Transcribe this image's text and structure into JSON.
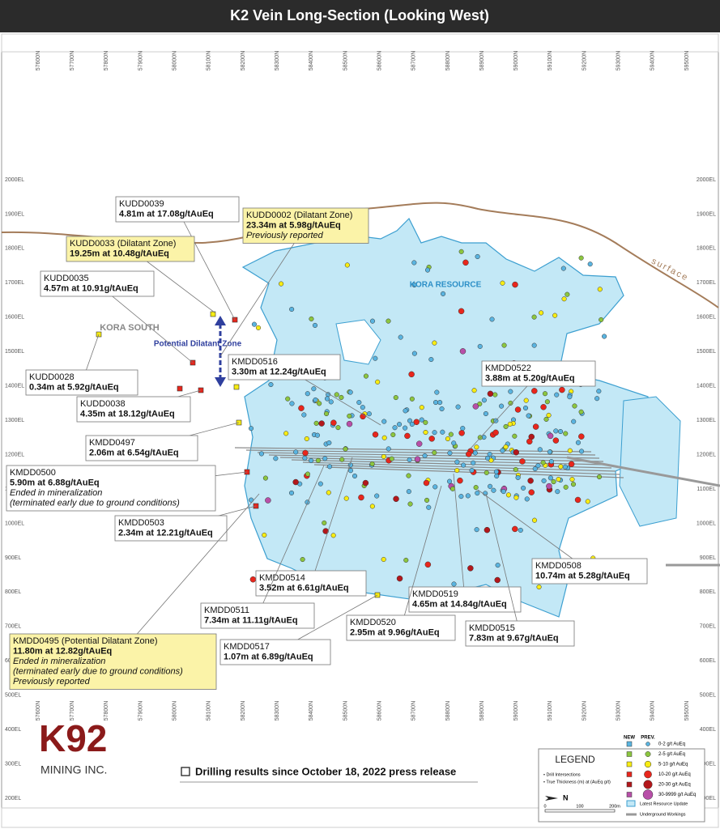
{
  "title": "K2 Vein Long-Section (Looking West)",
  "northings": [
    "57600N",
    "57700N",
    "57800N",
    "57900N",
    "58000N",
    "58100N",
    "58200N",
    "58300N",
    "58400N",
    "58500N",
    "58600N",
    "58700N",
    "58800N",
    "58900N",
    "59000N",
    "59100N",
    "59200N",
    "59300N",
    "59400N",
    "59500N"
  ],
  "elevations": [
    "2000EL",
    "1900EL",
    "1800EL",
    "1700EL",
    "1600EL",
    "1500EL",
    "1400EL",
    "1300EL",
    "1200EL",
    "1100EL",
    "1000EL",
    "900EL",
    "800EL",
    "700EL",
    "600EL",
    "500EL",
    "400EL",
    "300EL",
    "200EL"
  ],
  "map_labels": {
    "kora_south": "KORA SOUTH",
    "dilatant_zone": "Potential Dilatant Zone",
    "kora_resource": "KORA RESOURCE",
    "surface": "surface"
  },
  "callouts": [
    {
      "id": "KUDD0039",
      "result": "4.81m at 17.08g/tAuEq",
      "notes": [],
      "fill": "#ffffff"
    },
    {
      "id": "KUDD0002 (Dilatant Zone)",
      "result": "23.34m at 5.98g/tAuEq",
      "notes": [
        "Previously reported"
      ],
      "fill": "#fbf3a8"
    },
    {
      "id": "KUDD0033 (Dilatant Zone)",
      "result": "19.25m at 10.48g/tAuEq",
      "notes": [],
      "fill": "#fbf3a8"
    },
    {
      "id": "KUDD0035",
      "result": "4.57m at 10.91g/tAuEq",
      "notes": [],
      "fill": "#ffffff"
    },
    {
      "id": "KUDD0028",
      "result": "0.34m at 5.92g/tAuEq",
      "notes": [],
      "fill": "#ffffff"
    },
    {
      "id": "KUDD0038",
      "result": "4.35m at 18.12g/tAuEq",
      "notes": [],
      "fill": "#ffffff"
    },
    {
      "id": "KMDD0516",
      "result": "3.30m at 12.24g/tAuEq",
      "notes": [],
      "fill": "#ffffff"
    },
    {
      "id": "KMDD0522",
      "result": "3.88m at 5.20g/tAuEq",
      "notes": [],
      "fill": "#ffffff"
    },
    {
      "id": "KMDD0497",
      "result": "2.06m at 6.54g/tAuEq",
      "notes": [],
      "fill": "#ffffff"
    },
    {
      "id": "KMDD0500",
      "result": "5.90m at 6.88g/tAuEq",
      "notes": [
        "Ended in mineralization",
        "(terminated early due to ground conditions)"
      ],
      "fill": "#ffffff"
    },
    {
      "id": "KMDD0503",
      "result": "2.34m at 12.21g/tAuEq",
      "notes": [],
      "fill": "#ffffff"
    },
    {
      "id": "KMDD0508",
      "result": "10.74m at 5.28g/tAuEq",
      "notes": [],
      "fill": "#ffffff"
    },
    {
      "id": "KMDD0514",
      "result": "3.52m at 6.61g/tAuEq",
      "notes": [],
      "fill": "#ffffff"
    },
    {
      "id": "KMDD0519",
      "result": "4.65m at 14.84g/tAuEq",
      "notes": [],
      "fill": "#ffffff"
    },
    {
      "id": "KMDD0511",
      "result": "7.34m at 11.11g/tAuEq",
      "notes": [],
      "fill": "#ffffff"
    },
    {
      "id": "KMDD0520",
      "result": "2.95m at 9.96g/tAuEq",
      "notes": [],
      "fill": "#ffffff"
    },
    {
      "id": "KMDD0515",
      "result": "7.83m at 9.67g/tAuEq",
      "notes": [],
      "fill": "#ffffff"
    },
    {
      "id": "KMDD0495 (Potential Dilatant Zone)",
      "result": "11.80m at 12.82g/tAuEq",
      "notes": [
        "Ended in mineralization",
        "(terminated early due to ground conditions)",
        "Previously reported"
      ],
      "fill": "#fbf3a8"
    },
    {
      "id": "KMDD0517",
      "result": "1.07m at 6.89g/tAuEq",
      "notes": [],
      "fill": "#ffffff"
    }
  ],
  "note": "Drilling results since October 18, 2022 press release",
  "logo": {
    "mark": "K92",
    "sub": "MINING INC."
  },
  "legend": {
    "title": "LEGEND",
    "new": "NEW",
    "prev": "PREV.",
    "grades": [
      {
        "label": "0-2 g/t AuEq",
        "color": "#5ab4e0"
      },
      {
        "label": "2-5 g/t AuEq",
        "color": "#8cc63f"
      },
      {
        "label": "5-10 g/t AuEq",
        "color": "#f7ec13"
      },
      {
        "label": "10-20 g/t AuEq",
        "color": "#e8261c"
      },
      {
        "label": "20-30 g/t AuEq",
        "color": "#b3171b"
      },
      {
        "label": "30-9999 g/t AuEq",
        "color": "#b84fa8"
      }
    ],
    "notes": [
      "• Drill Intersections",
      "• True Thickness (m) at (AuEq g/t)"
    ],
    "north": "N",
    "scale": [
      "0",
      "100",
      "200m"
    ],
    "resource": "Latest Resource Update",
    "workings": "Underground Workings"
  }
}
